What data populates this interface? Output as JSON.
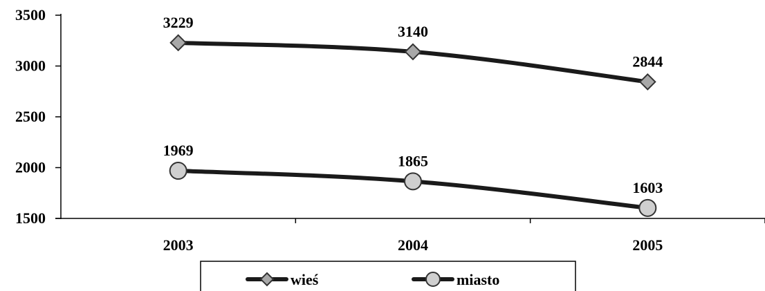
{
  "chart_data": {
    "type": "line",
    "title": "",
    "xlabel": "",
    "ylabel": "",
    "categories": [
      "2003",
      "2004",
      "2005"
    ],
    "ylim": [
      1500,
      3500
    ],
    "yticks": [
      1500,
      2000,
      2500,
      3000,
      3500
    ],
    "grid": false,
    "legend_position": "bottom",
    "series": [
      {
        "name": "wieś",
        "values": [
          3229,
          3140,
          2844
        ],
        "labels": [
          "3229",
          "3140",
          "2844"
        ],
        "marker": "diamond",
        "line_color": "#1a1a1a",
        "marker_color": "#a8a8a8"
      },
      {
        "name": "miasto",
        "values": [
          1969,
          1865,
          1603
        ],
        "labels": [
          "1969",
          "1865",
          "1603"
        ],
        "marker": "circle",
        "line_color": "#1a1a1a",
        "marker_color": "#cfcfcf"
      }
    ]
  }
}
